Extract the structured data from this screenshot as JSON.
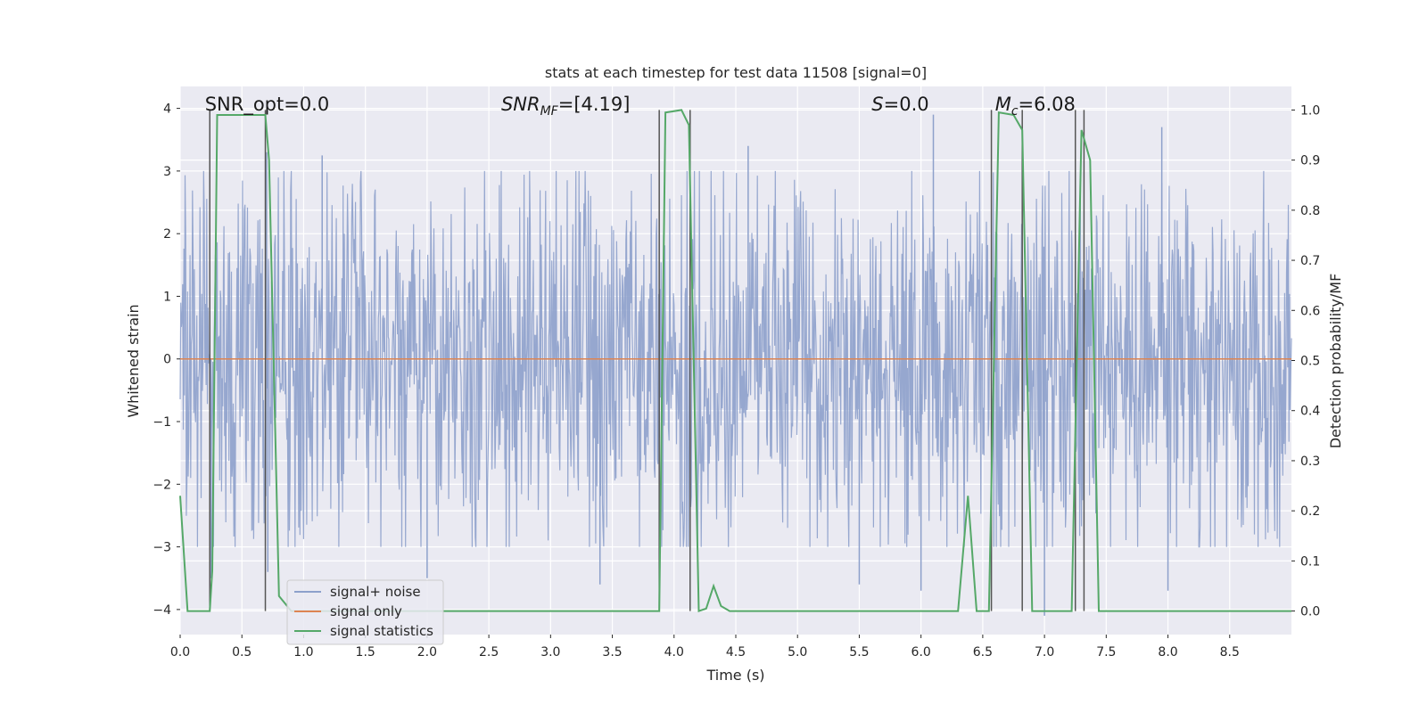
{
  "chart_data": {
    "type": "line",
    "title": "stats at each timestep for test data 11508 [signal=0]",
    "xlabel": "Time (s)",
    "ylabel": "Whitened strain",
    "y2label": "Detection probability/MF",
    "xlim": [
      0.0,
      9.0
    ],
    "ylim": [
      -4.4,
      4.35
    ],
    "y2lim": [
      -0.047,
      1.047
    ],
    "xticks": [
      0.0,
      0.5,
      1.0,
      1.5,
      2.0,
      2.5,
      3.0,
      3.5,
      4.0,
      4.5,
      5.0,
      5.5,
      6.0,
      6.5,
      7.0,
      7.5,
      8.0,
      8.5
    ],
    "xtick_labels": [
      "0.0",
      "0.5",
      "1.0",
      "1.5",
      "2.0",
      "2.5",
      "3.0",
      "3.5",
      "4.0",
      "4.5",
      "5.0",
      "5.5",
      "6.0",
      "6.5",
      "7.0",
      "7.5",
      "8.0",
      "8.5"
    ],
    "yticks": [
      -4,
      -3,
      -2,
      -1,
      0,
      1,
      2,
      3,
      4
    ],
    "ytick_labels": [
      "−4",
      "−3",
      "−2",
      "−1",
      "0",
      "1",
      "2",
      "3",
      "4"
    ],
    "y2ticks": [
      0.0,
      0.1,
      0.2,
      0.3,
      0.4,
      0.5,
      0.6,
      0.7,
      0.8,
      0.9,
      1.0
    ],
    "y2tick_labels": [
      "0.0",
      "0.1",
      "0.2",
      "0.3",
      "0.4",
      "0.5",
      "0.6",
      "0.7",
      "0.8",
      "0.9",
      "1.0"
    ],
    "colors": {
      "signal_noise": "#8da0cb",
      "signal_only": "#dd8452",
      "statistics": "#55a868",
      "vlines": "#555555",
      "plot_bg": "#eaeaf2",
      "grid": "#ffffff"
    },
    "series": [
      {
        "name": "signal+ noise",
        "axis": "left",
        "style": "dense noise band",
        "amplitude": 3.0,
        "peak_points": [
          {
            "x": 0.25,
            "y": -3.5
          },
          {
            "x": 0.7,
            "y": 3.3
          },
          {
            "x": 0.71,
            "y": -3.4
          },
          {
            "x": 1.15,
            "y": 3.25
          },
          {
            "x": 2.0,
            "y": -3.5
          },
          {
            "x": 3.4,
            "y": -3.6
          },
          {
            "x": 4.6,
            "y": 3.4
          },
          {
            "x": 5.5,
            "y": -3.6
          },
          {
            "x": 6.1,
            "y": 3.9
          },
          {
            "x": 6.0,
            "y": -3.7
          },
          {
            "x": 7.0,
            "y": -4.1
          },
          {
            "x": 7.95,
            "y": 3.7
          },
          {
            "x": 8.0,
            "y": -3.7
          }
        ]
      },
      {
        "name": "signal only",
        "axis": "left",
        "x": [
          0.0,
          9.0
        ],
        "y": [
          0.0,
          0.0
        ]
      },
      {
        "name": "signal statistics",
        "axis": "right",
        "x": [
          0.0,
          0.06,
          0.24,
          0.26,
          0.3,
          0.69,
          0.72,
          0.8,
          0.9,
          3.88,
          3.93,
          4.06,
          4.12,
          4.2,
          4.26,
          4.32,
          4.38,
          4.45,
          6.3,
          6.38,
          6.45,
          6.55,
          6.63,
          6.75,
          6.82,
          6.9,
          7.22,
          7.3,
          7.37,
          7.44,
          9.0
        ],
        "y": [
          0.23,
          0.0,
          0.0,
          0.08,
          0.99,
          0.99,
          0.9,
          0.03,
          0.0,
          0.0,
          0.995,
          1.0,
          0.97,
          0.0,
          0.005,
          0.05,
          0.01,
          0.0,
          0.0,
          0.23,
          0.0,
          0.0,
          0.995,
          0.99,
          0.96,
          0.0,
          0.0,
          0.96,
          0.9,
          0.0,
          0.0
        ]
      }
    ],
    "vlines_x": [
      0.24,
      0.69,
      3.88,
      4.13,
      6.57,
      6.82,
      7.25,
      7.32
    ],
    "annotations": [
      {
        "text": "SNR_opt=0.0",
        "x": 0.2
      },
      {
        "text": "SNR",
        "sub": "MF",
        "rest": "=[4.19]",
        "x": 2.6
      },
      {
        "text": "S",
        "rest": "=0.0",
        "x": 5.6
      },
      {
        "text": "M",
        "sub": "c",
        "rest": "=6.08",
        "x": 6.6
      }
    ],
    "legend": {
      "position": "lower-left",
      "entries": [
        "signal+ noise",
        "signal only",
        "signal statistics"
      ]
    }
  }
}
